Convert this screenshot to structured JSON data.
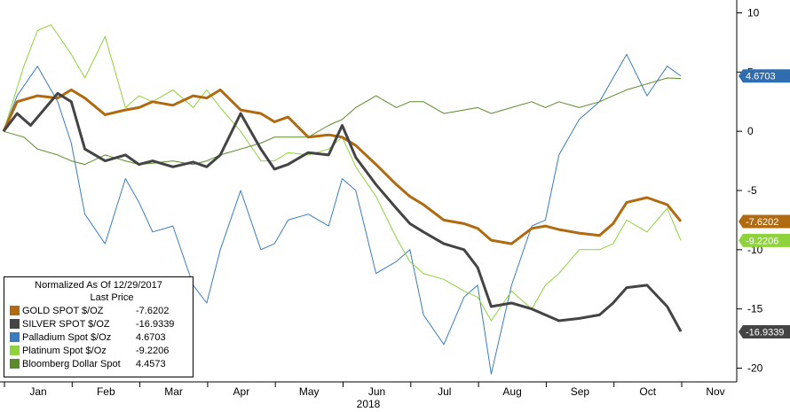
{
  "chart_data": {
    "type": "line",
    "xlabel": "2018",
    "ylabel": "",
    "x_ticks": [
      "Jan",
      "Feb",
      "Mar",
      "Apr",
      "May",
      "Jun",
      "Jul",
      "Aug",
      "Sep",
      "Oct",
      "Nov"
    ],
    "y_ticks": [
      10,
      5,
      0,
      -5,
      -10,
      -15,
      -20
    ],
    "ylim": [
      -21,
      11
    ],
    "grid": false,
    "legend": {
      "placement": "bottom-left",
      "title": "Normalized As Of 12/29/2017",
      "subtitle": "Last Price"
    },
    "series": [
      {
        "name": "GOLD SPOT $/OZ",
        "color": "#b06a10",
        "last": -7.6202,
        "last_label": "-7.6202",
        "last_label_color": "#b06a10",
        "width": 3,
        "x": [
          0,
          0.2,
          0.5,
          0.8,
          1.0,
          1.2,
          1.5,
          1.8,
          2.0,
          2.2,
          2.5,
          2.8,
          3.0,
          3.2,
          3.5,
          3.8,
          4.0,
          4.2,
          4.5,
          4.8,
          5.0,
          5.2,
          5.5,
          5.8,
          6.0,
          6.2,
          6.5,
          6.8,
          7.0,
          7.2,
          7.5,
          7.8,
          8.0,
          8.2,
          8.5,
          8.8,
          9.0,
          9.2,
          9.5,
          9.8,
          10.0
        ],
        "values": [
          0,
          2.5,
          3.0,
          2.8,
          3.5,
          2.8,
          1.4,
          1.8,
          2.0,
          2.5,
          2.2,
          3.0,
          2.8,
          3.5,
          1.8,
          1.5,
          0.8,
          1.2,
          -0.5,
          -0.3,
          -0.5,
          -1.2,
          -2.8,
          -4.5,
          -5.5,
          -6.2,
          -7.5,
          -7.8,
          -8.2,
          -9.2,
          -9.5,
          -8.2,
          -8.0,
          -8.3,
          -8.6,
          -8.8,
          -7.8,
          -6.0,
          -5.6,
          -6.2,
          -7.6
        ]
      },
      {
        "name": "SILVER SPOT $/OZ",
        "color": "#444444",
        "last": -16.9339,
        "last_label": "-16.9339",
        "last_label_color": "#444444",
        "width": 3,
        "x": [
          0,
          0.2,
          0.4,
          0.8,
          1.0,
          1.2,
          1.5,
          1.8,
          2.0,
          2.2,
          2.5,
          2.8,
          3.0,
          3.2,
          3.5,
          3.8,
          4.0,
          4.2,
          4.5,
          4.8,
          5.0,
          5.2,
          5.5,
          5.8,
          6.0,
          6.2,
          6.5,
          6.8,
          7.0,
          7.2,
          7.5,
          7.8,
          8.0,
          8.2,
          8.5,
          8.8,
          9.0,
          9.2,
          9.5,
          9.8,
          10.0
        ],
        "values": [
          0,
          1.5,
          0.5,
          3.2,
          2.5,
          -1.5,
          -2.5,
          -2.0,
          -2.8,
          -2.5,
          -3.0,
          -2.6,
          -3.0,
          -2.0,
          1.5,
          -1.5,
          -3.2,
          -2.8,
          -1.8,
          -2.0,
          0.5,
          -2.2,
          -4.5,
          -6.5,
          -7.8,
          -8.5,
          -9.5,
          -10.0,
          -11.5,
          -14.8,
          -14.5,
          -15.0,
          -15.5,
          -16.0,
          -15.8,
          -15.5,
          -14.5,
          -13.2,
          -13.0,
          -14.8,
          -16.9
        ]
      },
      {
        "name": "Palladium Spot $/Oz",
        "color": "#3a7bbf",
        "last": 4.6703,
        "last_label": "4.6703",
        "last_label_color": "#2f6db0",
        "width": 1,
        "x": [
          0,
          0.2,
          0.5,
          0.8,
          1.0,
          1.2,
          1.5,
          1.8,
          2.0,
          2.2,
          2.5,
          2.8,
          3.0,
          3.2,
          3.5,
          3.8,
          4.0,
          4.2,
          4.5,
          4.8,
          5.0,
          5.2,
          5.5,
          5.8,
          6.0,
          6.2,
          6.5,
          6.8,
          7.0,
          7.2,
          7.5,
          7.8,
          8.0,
          8.2,
          8.5,
          8.8,
          9.0,
          9.2,
          9.5,
          9.8,
          10.0
        ],
        "values": [
          0,
          3.0,
          5.5,
          2.5,
          -1.0,
          -7.0,
          -9.5,
          -4.0,
          -6.0,
          -8.5,
          -8.0,
          -13.0,
          -14.5,
          -10.0,
          -5.0,
          -10.0,
          -9.5,
          -7.5,
          -7.0,
          -8.0,
          -4.0,
          -5.0,
          -12.0,
          -11.0,
          -10.0,
          -15.5,
          -18.0,
          -14.0,
          -13.0,
          -20.5,
          -13.0,
          -8.0,
          -7.5,
          -2.0,
          1.0,
          2.5,
          4.5,
          6.5,
          3.0,
          5.5,
          4.67
        ]
      },
      {
        "name": "Platinum Spot $/Oz",
        "color": "#8ed23c",
        "last": -9.2206,
        "last_label": "-9.2206",
        "last_label_color": "#8ed23c",
        "width": 1,
        "x": [
          0,
          0.3,
          0.5,
          0.7,
          1.0,
          1.2,
          1.5,
          1.8,
          2.0,
          2.2,
          2.5,
          2.8,
          3.0,
          3.2,
          3.5,
          3.8,
          4.0,
          4.2,
          4.5,
          4.8,
          5.0,
          5.2,
          5.5,
          5.8,
          6.0,
          6.2,
          6.5,
          6.8,
          7.0,
          7.2,
          7.5,
          7.8,
          8.0,
          8.2,
          8.5,
          8.8,
          9.0,
          9.2,
          9.5,
          9.8,
          10.0
        ],
        "values": [
          0,
          5.5,
          8.5,
          9.0,
          6.5,
          4.5,
          8.0,
          2.0,
          3.0,
          2.5,
          3.5,
          2.0,
          3.5,
          2.0,
          0.0,
          -2.5,
          -2.5,
          -1.8,
          -2.0,
          -1.5,
          -0.5,
          -3.0,
          -5.5,
          -9.0,
          -11.0,
          -12.0,
          -12.5,
          -13.5,
          -14.0,
          -16.0,
          -13.5,
          -15.0,
          -13.0,
          -12.0,
          -10.0,
          -10.0,
          -9.5,
          -7.5,
          -8.5,
          -6.5,
          -9.22
        ]
      },
      {
        "name": "Bloomberg Dollar Spot",
        "color": "#5b8a2a",
        "last": 4.4573,
        "last_label": "",
        "last_label_color": "#5b8a2a",
        "width": 1,
        "x": [
          0,
          0.3,
          0.5,
          0.8,
          1.0,
          1.2,
          1.5,
          1.8,
          2.0,
          2.2,
          2.5,
          2.8,
          3.0,
          3.2,
          3.5,
          3.8,
          4.0,
          4.2,
          4.5,
          4.8,
          5.0,
          5.2,
          5.5,
          5.8,
          6.0,
          6.2,
          6.5,
          6.8,
          7.0,
          7.2,
          7.5,
          7.8,
          8.0,
          8.2,
          8.5,
          8.8,
          9.0,
          9.2,
          9.5,
          9.8,
          10.0
        ],
        "values": [
          0,
          -0.5,
          -1.5,
          -2.0,
          -2.5,
          -2.8,
          -2.0,
          -2.5,
          -2.8,
          -2.7,
          -2.5,
          -2.8,
          -2.5,
          -2.0,
          -1.5,
          -1.0,
          -0.5,
          -0.5,
          -0.5,
          0.5,
          1.0,
          2.0,
          3.0,
          2.0,
          2.5,
          2.5,
          1.5,
          1.8,
          2.0,
          1.5,
          2.0,
          2.5,
          2.0,
          2.5,
          2.0,
          2.5,
          3.0,
          3.5,
          4.0,
          4.5,
          4.46
        ]
      }
    ]
  },
  "legend_entries": [
    {
      "name": "GOLD SPOT $/OZ",
      "value": "-7.6202",
      "color": "#b06a10"
    },
    {
      "name": "SILVER SPOT $/OZ",
      "value": "-16.9339",
      "color": "#444444"
    },
    {
      "name": "Palladium Spot $/Oz",
      "value": "4.6703",
      "color": "#3a7bbf"
    },
    {
      "name": "Platinum Spot $/Oz",
      "value": "-9.2206",
      "color": "#8ed23c"
    },
    {
      "name": "Bloomberg Dollar Spot",
      "value": "4.4573",
      "color": "#5b8a2a"
    }
  ]
}
